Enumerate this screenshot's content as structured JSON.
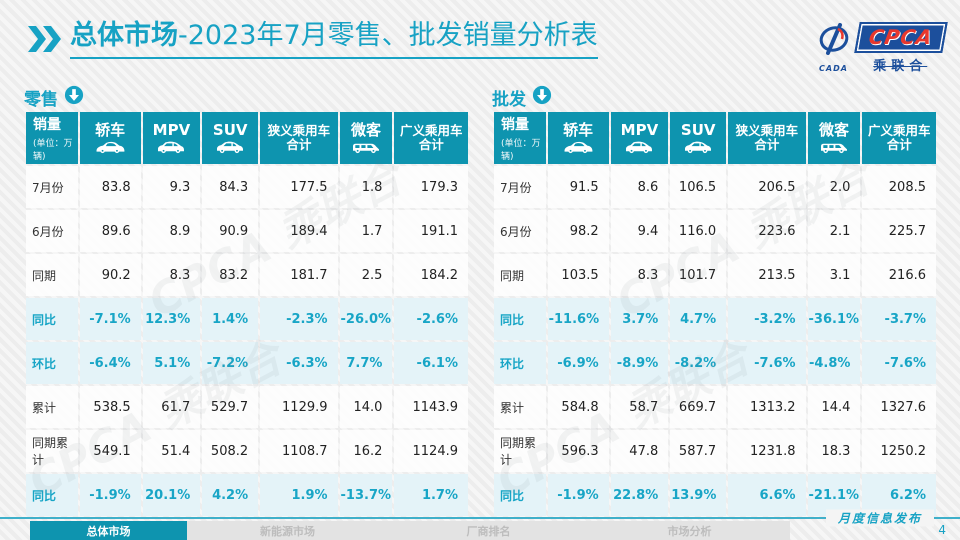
{
  "title": {
    "prefix": "总体市场",
    "rest": "-2023年7月零售、批发销量分析表"
  },
  "logo": {
    "name": "CPCA",
    "sub": "乘联合",
    "mark": "CADA"
  },
  "watermark": "CPCA 乘联合",
  "colors": {
    "accent_teal": "#0e94af",
    "title_teal": "#17a2c4",
    "pct_row_bg": "#e4f3f8",
    "logo_blue": "#1c4f9c",
    "logo_red": "#e8382d"
  },
  "tables": [
    {
      "section": "零售",
      "header": {
        "sales": "销量",
        "unit": "(单位：万辆)",
        "columns": [
          {
            "label": "轿车",
            "icon": "sedan-icon"
          },
          {
            "label": "MPV",
            "icon": "mpv-icon"
          },
          {
            "label": "SUV",
            "icon": "suv-icon"
          },
          {
            "label": "狭义乘用车",
            "label2": "合计"
          },
          {
            "label": "微客",
            "icon": "microvan-icon"
          },
          {
            "label": "广义乘用车",
            "label2": "合计"
          }
        ]
      },
      "rows": [
        {
          "label": "7月份",
          "style": "num",
          "values": [
            "83.8",
            "9.3",
            "84.3",
            "177.5",
            "1.8",
            "179.3"
          ]
        },
        {
          "label": "6月份",
          "style": "num",
          "values": [
            "89.6",
            "8.9",
            "90.9",
            "189.4",
            "1.7",
            "191.1"
          ]
        },
        {
          "label": "同期",
          "style": "num",
          "values": [
            "90.2",
            "8.3",
            "83.2",
            "181.7",
            "2.5",
            "184.2"
          ]
        },
        {
          "label": "同比",
          "style": "pct",
          "values": [
            "-7.1%",
            "12.3%",
            "1.4%",
            "-2.3%",
            "-26.0%",
            "-2.6%"
          ]
        },
        {
          "label": "环比",
          "style": "pct",
          "values": [
            "-6.4%",
            "5.1%",
            "-7.2%",
            "-6.3%",
            "7.7%",
            "-6.1%"
          ]
        },
        {
          "label": "累计",
          "style": "num",
          "values": [
            "538.5",
            "61.7",
            "529.7",
            "1129.9",
            "14.0",
            "1143.9"
          ]
        },
        {
          "label": "同期累计",
          "style": "num",
          "values": [
            "549.1",
            "51.4",
            "508.2",
            "1108.7",
            "16.2",
            "1124.9"
          ]
        },
        {
          "label": "同比",
          "style": "pct",
          "values": [
            "-1.9%",
            "20.1%",
            "4.2%",
            "1.9%",
            "-13.7%",
            "1.7%"
          ]
        }
      ]
    },
    {
      "section": "批发",
      "header": {
        "sales": "销量",
        "unit": "(单位：万辆)",
        "columns": [
          {
            "label": "轿车",
            "icon": "sedan-icon"
          },
          {
            "label": "MPV",
            "icon": "mpv-icon"
          },
          {
            "label": "SUV",
            "icon": "suv-icon"
          },
          {
            "label": "狭义乘用车",
            "label2": "合计"
          },
          {
            "label": "微客",
            "icon": "microvan-icon"
          },
          {
            "label": "广义乘用车",
            "label2": "合计"
          }
        ]
      },
      "rows": [
        {
          "label": "7月份",
          "style": "num",
          "values": [
            "91.5",
            "8.6",
            "106.5",
            "206.5",
            "2.0",
            "208.5"
          ]
        },
        {
          "label": "6月份",
          "style": "num",
          "values": [
            "98.2",
            "9.4",
            "116.0",
            "223.6",
            "2.1",
            "225.7"
          ]
        },
        {
          "label": "同期",
          "style": "num",
          "values": [
            "103.5",
            "8.3",
            "101.7",
            "213.5",
            "3.1",
            "216.6"
          ]
        },
        {
          "label": "同比",
          "style": "pct",
          "values": [
            "-11.6%",
            "3.7%",
            "4.7%",
            "-3.2%",
            "-36.1%",
            "-3.7%"
          ]
        },
        {
          "label": "环比",
          "style": "pct",
          "values": [
            "-6.9%",
            "-8.9%",
            "-8.2%",
            "-7.6%",
            "-4.8%",
            "-7.6%"
          ]
        },
        {
          "label": "累计",
          "style": "num",
          "values": [
            "584.8",
            "58.7",
            "669.7",
            "1313.2",
            "14.4",
            "1327.6"
          ]
        },
        {
          "label": "同期累计",
          "style": "num",
          "values": [
            "596.3",
            "47.8",
            "587.7",
            "1231.8",
            "18.3",
            "1250.2"
          ]
        },
        {
          "label": "同比",
          "style": "pct",
          "values": [
            "-1.9%",
            "22.8%",
            "13.9%",
            "6.6%",
            "-21.1%",
            "6.2%"
          ]
        }
      ]
    }
  ],
  "footer": {
    "release_label": "月度信息发布",
    "page_number": "4",
    "tabs": [
      {
        "label": "总体市场",
        "active": true
      },
      {
        "label": "新能源市场",
        "active": false
      },
      {
        "label": "厂商排名",
        "active": false
      },
      {
        "label": "市场分析",
        "active": false
      }
    ]
  }
}
